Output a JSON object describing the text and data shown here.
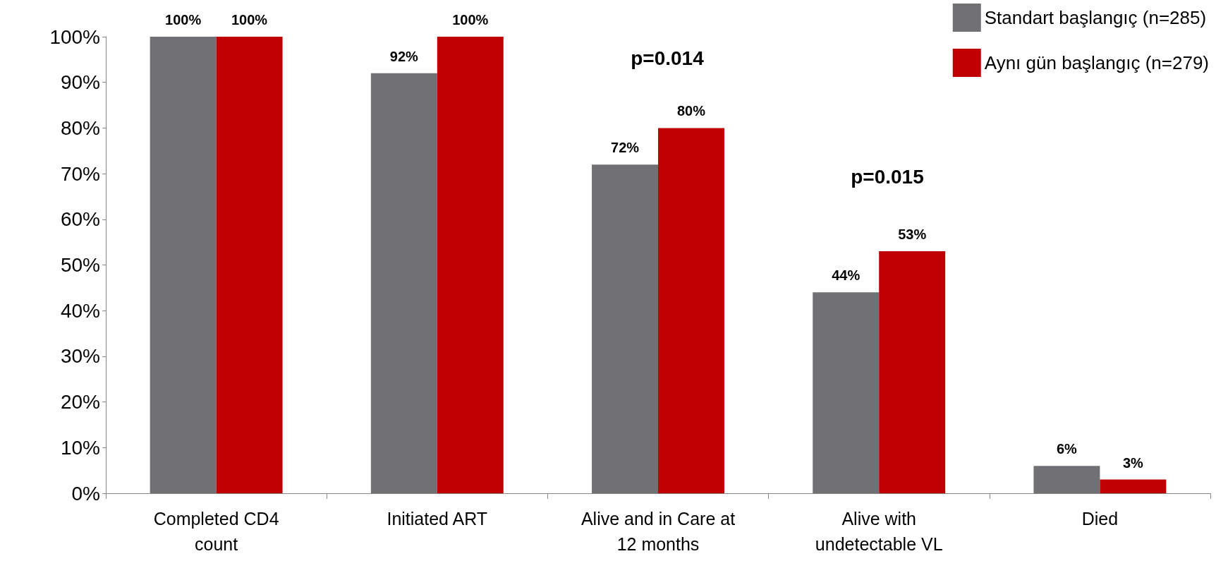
{
  "chart_data": {
    "type": "bar",
    "categories": [
      "Completed CD4\ncount",
      "Initiated ART",
      "Alive and in Care at\n12 months",
      "Alive with\nundetectable VL",
      "Died"
    ],
    "series": [
      {
        "name": "Standart başlangıç (n=285)",
        "color": "#717075",
        "values": [
          100,
          92,
          72,
          44,
          6
        ],
        "value_labels": [
          "100%",
          "92%",
          "72%",
          "44%",
          "6%"
        ]
      },
      {
        "name": "Aynı gün başlangıç (n=279)",
        "color": "#c00000",
        "values": [
          100,
          100,
          80,
          53,
          3
        ],
        "value_labels": [
          "100%",
          "100%",
          "80%",
          "53%",
          "3%"
        ]
      }
    ],
    "ylim": [
      0,
      100
    ],
    "yticks": [
      {
        "value": 0,
        "label": "0%"
      },
      {
        "value": 10,
        "label": "10%"
      },
      {
        "value": 20,
        "label": "20%"
      },
      {
        "value": 30,
        "label": "30%"
      },
      {
        "value": 40,
        "label": "40%"
      },
      {
        "value": 50,
        "label": "50%"
      },
      {
        "value": 60,
        "label": "60%"
      },
      {
        "value": 70,
        "label": "70%"
      },
      {
        "value": 80,
        "label": "80%"
      },
      {
        "value": 90,
        "label": "90%"
      },
      {
        "value": 100,
        "label": "100%"
      }
    ],
    "annotations": [
      "p=0.014",
      "p=0.015"
    ],
    "grid": false,
    "legend": "top right"
  }
}
